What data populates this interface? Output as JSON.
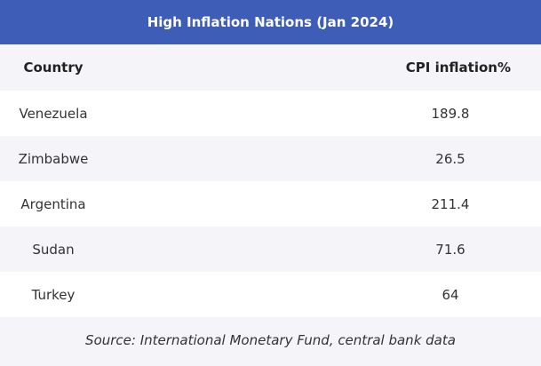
{
  "table": {
    "title": "High Inflation Nations (Jan 2024)",
    "headers": {
      "country": "Country",
      "value": "CPI inflation%"
    },
    "source": "Source: International Monetary Fund, central bank data"
  },
  "chart_data": {
    "type": "table",
    "title": "High Inflation Nations (Jan 2024)",
    "columns": [
      "Country",
      "CPI inflation%"
    ],
    "rows": [
      {
        "country": "Venezuela",
        "value": "189.8"
      },
      {
        "country": "Zimbabwe",
        "value": "26.5"
      },
      {
        "country": "Argentina",
        "value": "211.4"
      },
      {
        "country": "Sudan",
        "value": "71.6"
      },
      {
        "country": "Turkey",
        "value": "64"
      }
    ],
    "source": "Source: International Monetary Fund, central bank data"
  },
  "colors": {
    "header_bg": "#3e5db7",
    "stripe_light": "#ffffff",
    "stripe_dark": "#f4f4f9"
  }
}
